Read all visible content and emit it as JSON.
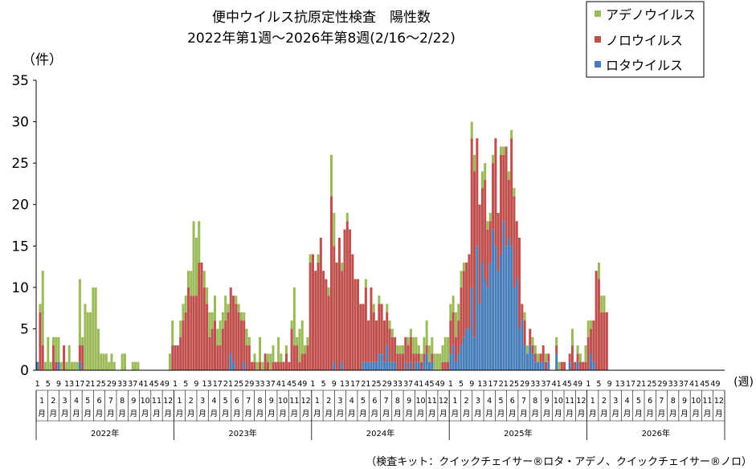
{
  "chart_data": {
    "type": "bar",
    "stacked": true,
    "title": "便中ウイルス抗原定性検査　陽性数",
    "subtitle": "2022年第1週～2026年第8週(2/16～2/22)",
    "ylabel": "（件）",
    "xunit": "(週)",
    "ylim": [
      0,
      35
    ],
    "yticks": [
      "0",
      "5",
      "10",
      "15",
      "20",
      "25",
      "30",
      "35"
    ],
    "grid": false,
    "legend_position": "top-right",
    "week_ticks": [
      "1",
      "5",
      "9",
      "13",
      "17",
      "21",
      "25",
      "29",
      "33",
      "37",
      "41",
      "45",
      "49"
    ],
    "month_numbers": [
      "1",
      "2",
      "3",
      "4",
      "5",
      "6",
      "7",
      "8",
      "9",
      "10",
      "11",
      "12"
    ],
    "month_unit": "月",
    "years": [
      "2022年",
      "2023年",
      "2024年",
      "2025年",
      "2026年"
    ],
    "series": [
      {
        "name": "ロタウイルス",
        "color": "#4a7ebb",
        "key": "rota"
      },
      {
        "name": "ノロウイルス",
        "color": "#c0504d",
        "key": "noro"
      },
      {
        "name": "アデノウイルス",
        "color": "#9bbb59",
        "key": "adeno"
      }
    ],
    "weeks": {
      "2022": {
        "rota": [
          1,
          0,
          0,
          0,
          0,
          0,
          0,
          0,
          1,
          0,
          0,
          0,
          0,
          0,
          0,
          0,
          1,
          0,
          0,
          0,
          0,
          0,
          0,
          0,
          0,
          0,
          0,
          0,
          0,
          0,
          0,
          0,
          0,
          0,
          0,
          0,
          0,
          0,
          0,
          0,
          0,
          0,
          0,
          0,
          0,
          0,
          0,
          0,
          0,
          0,
          0,
          0
        ],
        "noro": [
          0,
          7,
          3,
          0,
          0,
          0,
          3,
          1,
          0,
          0,
          3,
          0,
          0,
          0,
          0,
          0,
          2,
          3,
          0,
          0,
          0,
          0,
          0,
          0,
          0,
          0,
          0,
          0,
          0,
          0,
          0,
          0,
          0,
          0,
          0,
          0,
          0,
          0,
          0,
          0,
          0,
          0,
          0,
          0,
          0,
          0,
          0,
          0,
          0,
          0,
          0,
          3
        ],
        "adeno": [
          0,
          1,
          9,
          1,
          4,
          1,
          1,
          3,
          3,
          1,
          0,
          1,
          3,
          1,
          1,
          1,
          8,
          1,
          8,
          7,
          7,
          10,
          10,
          5,
          2,
          2,
          2,
          1,
          2,
          1,
          0,
          0,
          2,
          2,
          0,
          0,
          1,
          1,
          1,
          0,
          0,
          0,
          0,
          0,
          0,
          0,
          0,
          0,
          0,
          0,
          2,
          3
        ]
      },
      "2023": {
        "rota": [
          0,
          0,
          0,
          0,
          0,
          0,
          0,
          0,
          0,
          0,
          0,
          0,
          0,
          0,
          0,
          0,
          0,
          0,
          0,
          0,
          0,
          2,
          1,
          0,
          0,
          0,
          1,
          0,
          0,
          0,
          0,
          0,
          0,
          0,
          0,
          0,
          0,
          0,
          0,
          0,
          0,
          0,
          0,
          0,
          0,
          0,
          0,
          0,
          0,
          0,
          0,
          0
        ],
        "noro": [
          3,
          3,
          4,
          6,
          7,
          10,
          9,
          9,
          9,
          13,
          13,
          10,
          8,
          4,
          5,
          6,
          3,
          3,
          5,
          6,
          7,
          8,
          8,
          8,
          7,
          6,
          5,
          3,
          3,
          1,
          1,
          0,
          1,
          0,
          2,
          1,
          0,
          1,
          1,
          1,
          1,
          1,
          2,
          1,
          5,
          3,
          3,
          1,
          2,
          2,
          3,
          13
        ],
        "adeno": [
          0,
          0,
          2,
          2,
          2,
          2,
          3,
          9,
          7,
          5,
          0,
          2,
          2,
          3,
          2,
          3,
          2,
          3,
          2,
          3,
          1,
          0,
          0,
          1,
          1,
          1,
          1,
          2,
          1,
          0,
          1,
          1,
          3,
          1,
          0,
          1,
          2,
          2,
          0,
          3,
          1,
          0,
          1,
          0,
          1,
          7,
          1,
          4,
          4,
          1,
          1,
          1
        ]
      },
      "2024": {
        "rota": [
          0,
          0,
          0,
          0,
          0,
          0,
          0,
          0,
          1,
          0,
          0,
          1,
          0,
          0,
          0,
          0,
          0,
          0,
          0,
          1,
          1,
          1,
          1,
          1,
          1,
          2,
          2,
          1,
          3,
          1,
          1,
          1,
          0,
          0,
          0,
          1,
          0,
          1,
          0,
          1,
          1,
          0,
          1,
          2,
          1,
          1,
          0,
          0,
          0,
          0,
          0,
          0
        ],
        "noro": [
          14,
          12,
          13,
          16,
          12,
          11,
          9,
          21,
          14,
          13,
          16,
          11,
          17,
          18,
          17,
          14,
          11,
          11,
          8,
          7,
          9,
          5,
          9,
          6,
          5,
          6,
          6,
          5,
          4,
          4,
          3,
          3,
          2,
          2,
          2,
          3,
          3,
          3,
          2,
          1,
          1,
          1,
          1,
          1,
          0,
          1,
          0,
          0,
          0,
          1,
          1,
          1
        ],
        "adeno": [
          0,
          0,
          1,
          0,
          0,
          0,
          1,
          5,
          4,
          0,
          0,
          1,
          0,
          1,
          0,
          0,
          0,
          0,
          0,
          0,
          1,
          0,
          0,
          1,
          0,
          1,
          0,
          0,
          1,
          1,
          1,
          0,
          1,
          1,
          1,
          0,
          1,
          1,
          2,
          2,
          1,
          1,
          2,
          3,
          2,
          2,
          2,
          2,
          2,
          2,
          3,
          3
        ]
      },
      "2025": {
        "rota": [
          2,
          3,
          1,
          2,
          3,
          4,
          5,
          5,
          10,
          4,
          15,
          8,
          13,
          11,
          10,
          13,
          17,
          15,
          12,
          14,
          18,
          15,
          16,
          15,
          10,
          11,
          5,
          6,
          3,
          2,
          3,
          2,
          1,
          1,
          1,
          1,
          0,
          1,
          0,
          0,
          2,
          0,
          0,
          0,
          0,
          1,
          0,
          0,
          1,
          0,
          0,
          0
        ],
        "noro": [
          4,
          4,
          3,
          4,
          7,
          8,
          8,
          9,
          18,
          20,
          13,
          12,
          9,
          12,
          7,
          5,
          8,
          13,
          7,
          12,
          8,
          12,
          7,
          13,
          11,
          7,
          11,
          2,
          3,
          0,
          2,
          1,
          1,
          0,
          1,
          2,
          1,
          1,
          0,
          0,
          1,
          0,
          1,
          1,
          0,
          1,
          3,
          1,
          1,
          1,
          1,
          1
        ],
        "adeno": [
          2,
          2,
          3,
          2,
          2,
          1,
          0,
          0,
          2,
          2,
          0,
          0,
          2,
          2,
          1,
          1,
          1,
          0,
          0,
          1,
          1,
          0,
          1,
          1,
          1,
          0,
          0,
          0,
          1,
          1,
          0,
          1,
          1,
          1,
          0,
          0,
          1,
          0,
          0,
          0,
          1,
          1,
          0,
          0,
          0,
          0,
          2,
          0,
          1,
          1,
          0,
          2
        ]
      },
      "2026": {
        "rota": [
          0,
          2,
          1,
          0,
          0,
          0,
          0,
          0
        ],
        "noro": [
          4,
          3,
          5,
          12,
          11,
          7,
          7,
          7
        ],
        "adeno": [
          2,
          1,
          0,
          0,
          2,
          2,
          2,
          0
        ]
      }
    }
  },
  "footnote": "（検査キット：クイックチェイサー®ロタ・アデノ、クイックチェイサー®ノロ）"
}
